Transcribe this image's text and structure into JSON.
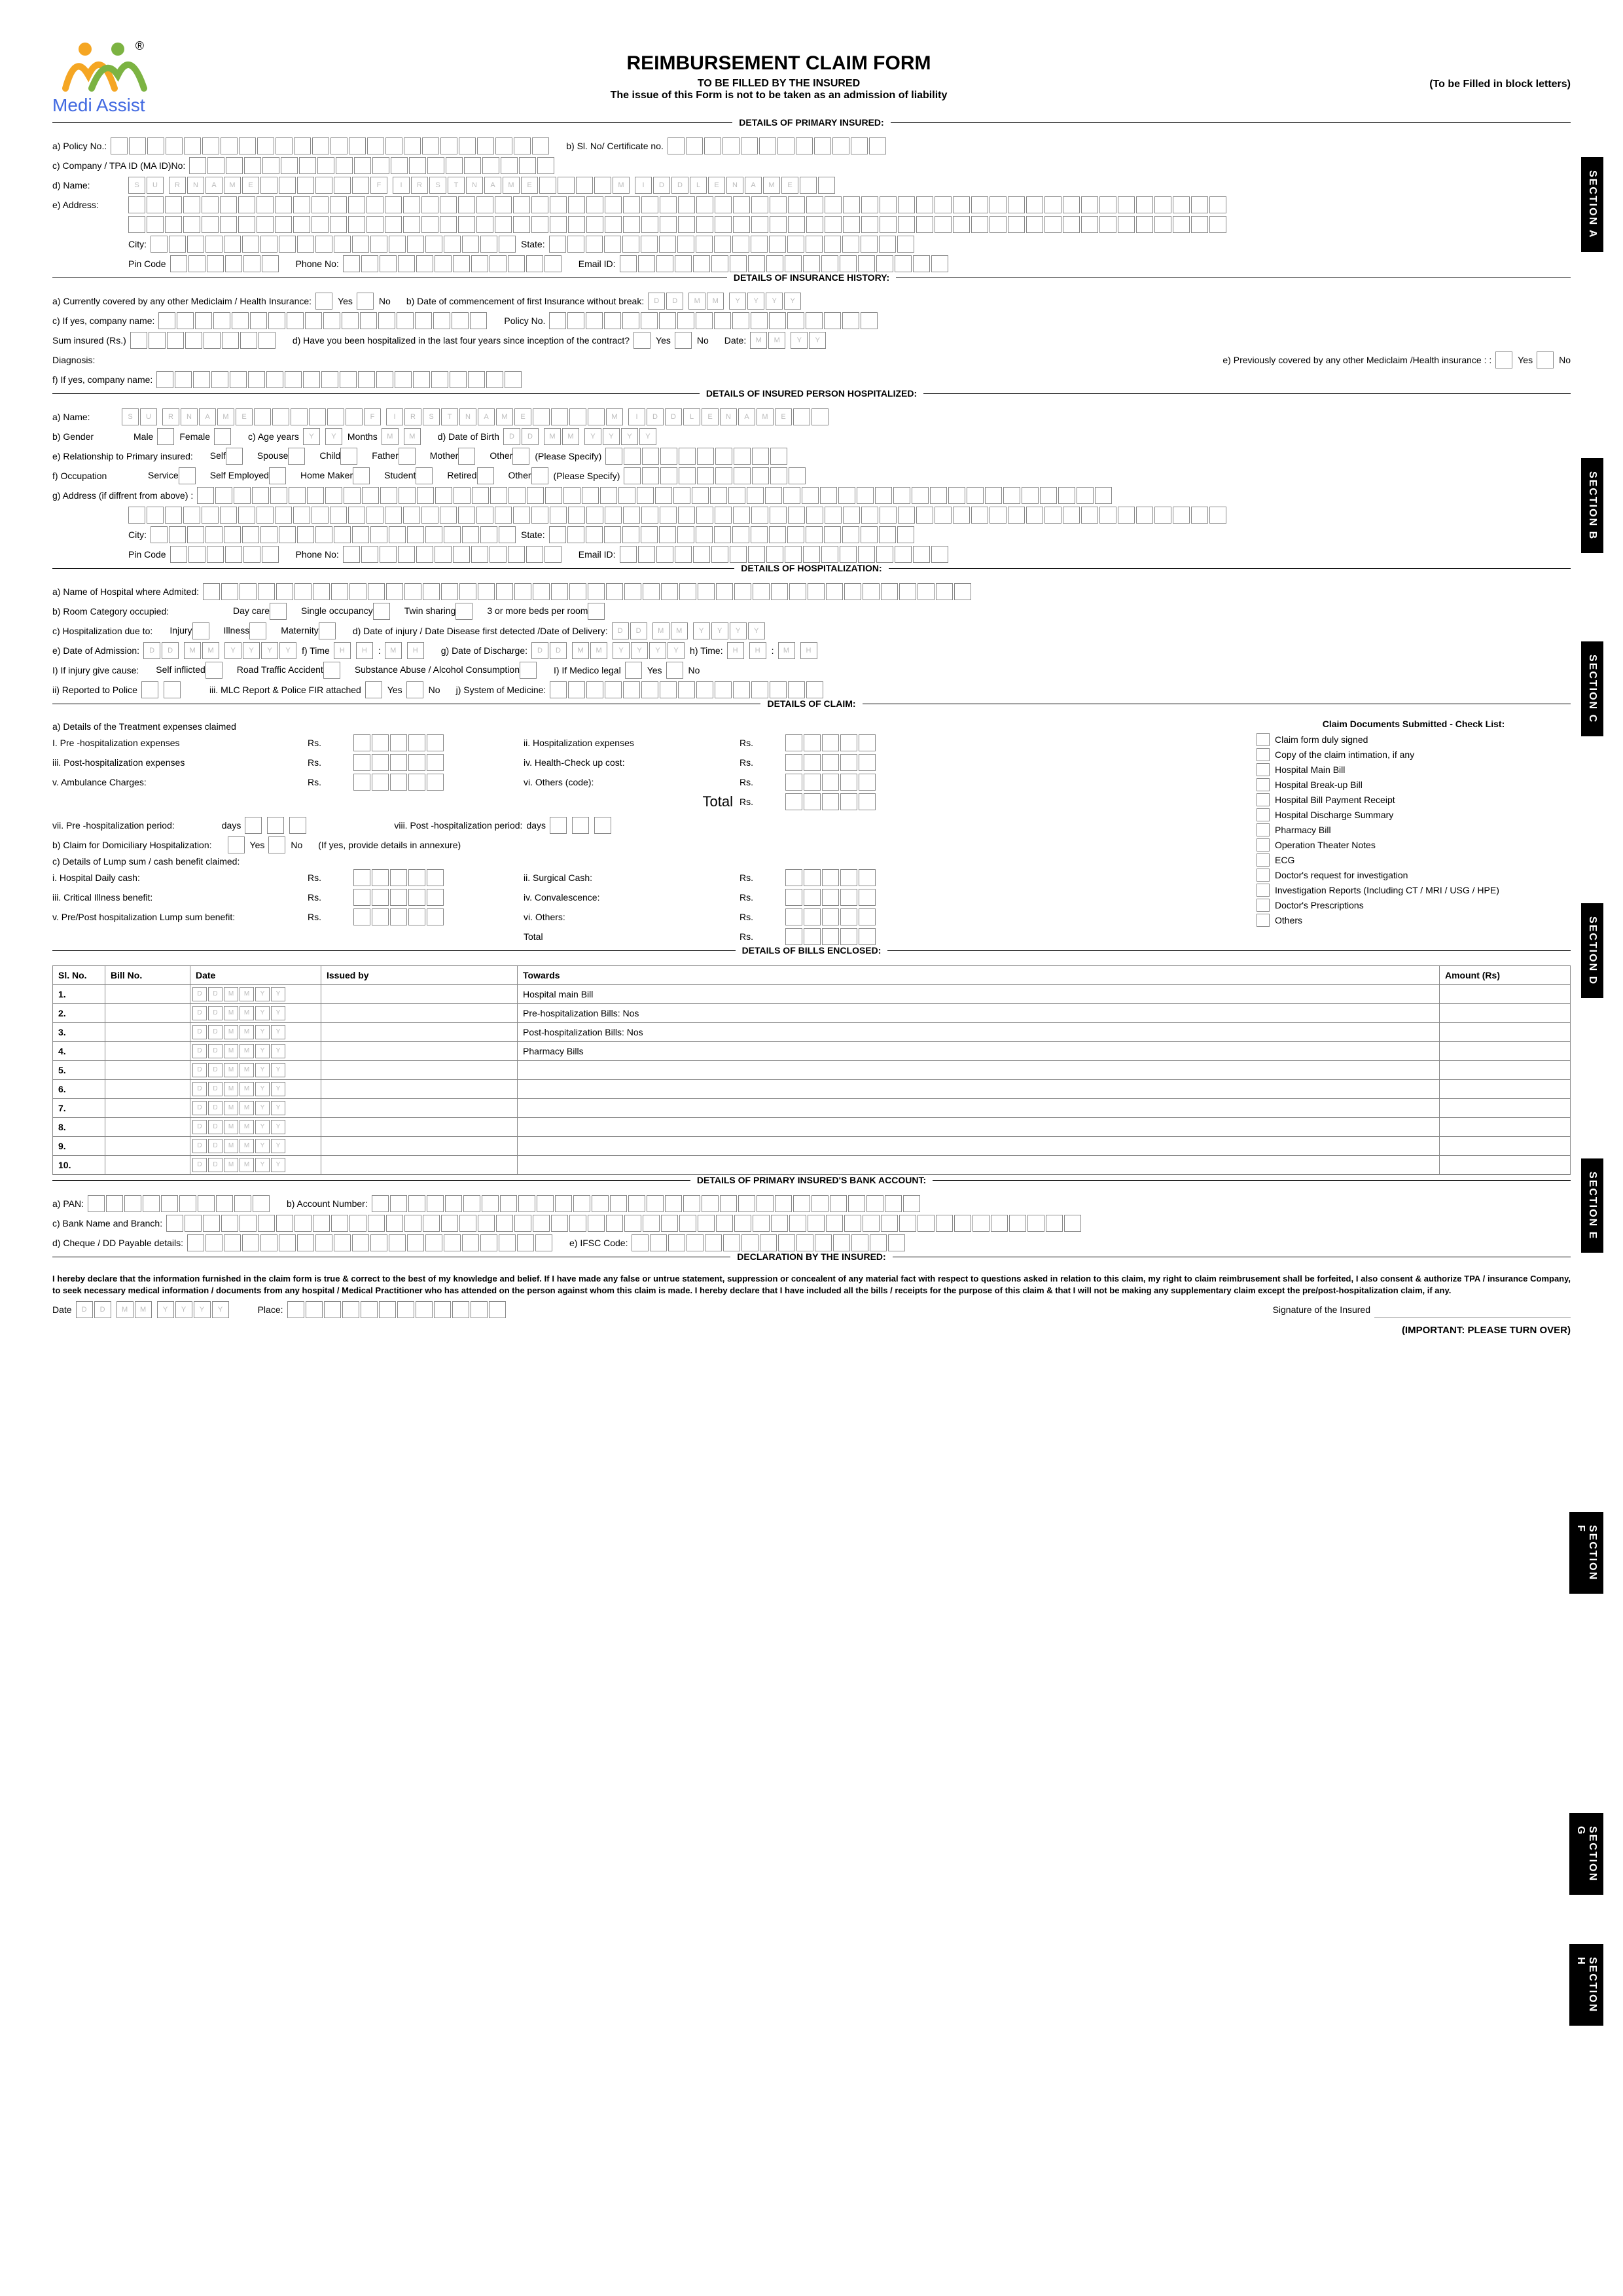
{
  "header": {
    "logo_text": "Medi Assist",
    "title": "REIMBURSEMENT CLAIM FORM",
    "subtitle1": "TO BE FILLED BY THE INSURED",
    "subtitle2": "The issue of this Form is not to be taken as an admission of liability",
    "right_note": "(To be Filled in block letters)"
  },
  "sections": {
    "a": "DETAILS OF PRIMARY INSURED:",
    "b": "DETAILS OF INSURANCE HISTORY:",
    "c": "DETAILS OF INSURED PERSON HOSPITALIZED:",
    "d": "DETAILS OF HOSPITALIZATION:",
    "e": "DETAILS OF CLAIM:",
    "f": "DETAILS OF BILLS ENCLOSED:",
    "g": "DETAILS OF PRIMARY INSURED'S BANK ACCOUNT:",
    "h": "DECLARATION BY THE INSURED:"
  },
  "section_tabs": [
    "SECTION A",
    "SECTION B",
    "SECTION C",
    "SECTION D",
    "SECTION E",
    "SECTION F",
    "SECTION G",
    "SECTION H"
  ],
  "primary": {
    "policy_no": "a) Policy No.:",
    "sl_no": "b) Sl. No/ Certificate no.",
    "company": "c) Company / TPA ID (MA ID)No:",
    "name": "d) Name:",
    "name_hints": [
      "S",
      "U",
      "R",
      "N",
      "A",
      "M",
      "E",
      "",
      "",
      "",
      "",
      "",
      "",
      "F",
      "I",
      "R",
      "S",
      "T",
      "N",
      "A",
      "M",
      "E",
      "",
      "",
      "",
      "",
      "M",
      "I",
      "D",
      "D",
      "L",
      "E",
      "N",
      "A",
      "M",
      "E"
    ],
    "address": "e) Address:",
    "city": "City:",
    "state": "State:",
    "pin": "Pin Code",
    "phone": "Phone No:",
    "email": "Email ID:"
  },
  "history": {
    "covered": "a) Currently covered by any other Mediclaim / Health Insurance:",
    "yes": "Yes",
    "no": "No",
    "commence": "b) Date of  commencement of first Insurance without break:",
    "company_name": "c) If yes, company name:",
    "policy_no": "Policy No.",
    "sum": "Sum insured (Rs.)",
    "hospitalized": "d) Have you been hospitalized in the last four years since inception of the contract?",
    "date": "Date:",
    "diagnosis": "Diagnosis:",
    "prev": "e) Previously covered by any other Mediclaim /Health insurance : :",
    "if_yes": "f) If yes, company name:"
  },
  "insured_person": {
    "name": "a) Name:",
    "gender": "b) Gender",
    "male": "Male",
    "female": "Female",
    "age": "c) Age years",
    "months": "Months",
    "dob": "d) Date of Birth",
    "relation": "e) Relationship to Primary insured:",
    "rel_opts": [
      "Self",
      "Spouse",
      "Child",
      "Father",
      "Mother",
      "Other"
    ],
    "specify": "(Please Specify)",
    "occupation": "f) Occupation",
    "occ_opts": [
      "Service",
      "Self Employed",
      "Home Maker",
      "Student",
      "Retired",
      "Other"
    ],
    "address": "g) Address (if diffrent from above) :"
  },
  "hospitalization": {
    "hospital": "a) Name of Hospital where Admited:",
    "room": "b) Room Category occupied:",
    "room_opts": [
      "Day care",
      "Single occupancy",
      "Twin sharing",
      "3 or more beds per room"
    ],
    "due_to": "c) Hospitalization due to:",
    "due_opts": [
      "Injury",
      "Illness",
      "Maternity"
    ],
    "injury_date": "d) Date of injury / Date Disease first detected  /Date of Delivery:",
    "admission": "e) Date of  Admission:",
    "time_f": "f) Time",
    "discharge": "g) Date of Discharge:",
    "time_h": "h) Time:",
    "injury_cause": "I) If injury give cause:",
    "cause_opts": [
      "Self inflicted",
      "Road Traffic Accident",
      "Substance Abuse / Alcohol Consumption"
    ],
    "medico": "I) If Medico  legal",
    "reported": "ii) Reported to Police",
    "mlc": "iii. MLC Report & Police FIR attached",
    "system": "j) System of Medicine:"
  },
  "claim": {
    "details_title": "a) Details of the Treatment expenses claimed",
    "items": {
      "pre_hosp": "I.  Pre -hospitalization expenses",
      "hosp_exp": "ii.  Hospitalization expenses",
      "post_hosp": "iii. Post-hospitalization expenses",
      "health_check": "iv.  Health-Check up cost:",
      "ambulance": "v. Ambulance Charges:",
      "others_code": "vi. Others (code):",
      "total": "Total",
      "pre_period": "vii.  Pre -hospitalization period:",
      "post_period": "viii.  Post -hospitalization period:",
      "days": "days",
      "rs": "Rs."
    },
    "domiciliary": "b) Claim for Domiciliary Hospitalization:",
    "annexure": "(If yes, provide details in annexure)",
    "lump": "c) Details of Lump sum / cash benefit claimed:",
    "lump_items": {
      "daily": "i. Hospital Daily cash:",
      "surgical": "ii. Surgical Cash:",
      "critical": "iii. Critical Illness benefit:",
      "conval": "iv. Convalescence:",
      "prepost": "v. Pre/Post hospitalization Lump sum benefit:",
      "others": "vi. Others:",
      "total": "Total"
    },
    "checklist_title": "Claim Documents Submitted - Check List:",
    "checklist": [
      "Claim form duly signed",
      "Copy of the claim intimation, if any",
      "Hospital Main Bill",
      "Hospital Break-up Bill",
      "Hospital Bill Payment Receipt",
      "Hospital Discharge Summary",
      "Pharmacy Bill",
      "Operation Theater Notes",
      "ECG",
      "Doctor's request for investigation",
      "Investigation Reports (Including CT / MRI / USG / HPE)",
      "Doctor's Prescriptions",
      "Others"
    ]
  },
  "bills": {
    "headers": [
      "Sl. No.",
      "Bill No.",
      "Date",
      "Issued by",
      "Towards",
      "Amount (Rs)"
    ],
    "rows": [
      {
        "sl": "1.",
        "towards": "Hospital main Bill"
      },
      {
        "sl": "2.",
        "towards": "Pre-hospitalization Bills:        Nos"
      },
      {
        "sl": "3.",
        "towards": "Post-hospitalization Bills:       Nos"
      },
      {
        "sl": "4.",
        "towards": "Pharmacy Bills"
      },
      {
        "sl": "5.",
        "towards": ""
      },
      {
        "sl": "6.",
        "towards": ""
      },
      {
        "sl": "7.",
        "towards": ""
      },
      {
        "sl": "8.",
        "towards": ""
      },
      {
        "sl": "9.",
        "towards": ""
      },
      {
        "sl": "10.",
        "towards": ""
      }
    ]
  },
  "bank": {
    "pan": "a) PAN:",
    "account": "b) Account Number:",
    "bank_name": "c) Bank Name and Branch:",
    "cheque": "d) Cheque / DD Payable details:",
    "ifsc": "e) IFSC Code:"
  },
  "declaration": {
    "text": "I hereby declare that the information furnished in the claim form is true & correct to the best of my knowledge and belief. If I have made any false or untrue statement, suppression or concealent of any material fact with respect to questions asked in relation to this claim, my right to claim reimbrusement shall be forfeited, I also consent & authorize TPA / insurance Company, to seek necessary medical information / documents from any hospital / Medical Practitioner who has attended on the person against whom this claim is made. I hereby declare that I have included all the bills / receipts for the purpose of this claim & that I will not be making any supplementary claim except the pre/post-hospitalization claim, if any.",
    "date": "Date",
    "place": "Place:",
    "signature": "Signature of the Insured"
  },
  "footer": "(IMPORTANT: PLEASE TURN OVER)"
}
